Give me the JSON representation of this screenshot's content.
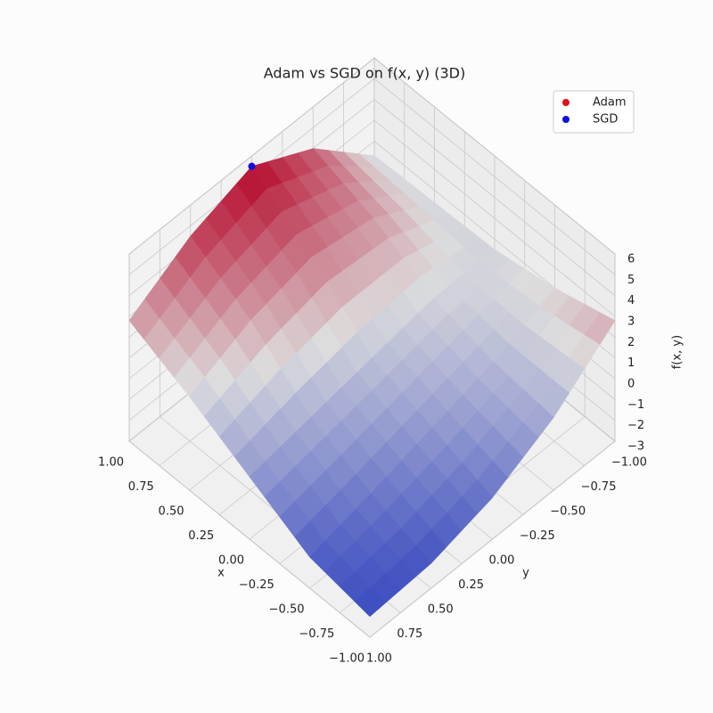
{
  "chart_data": {
    "type": "surface3d",
    "title": "Adam vs SGD on f(x, y) (3D)",
    "x_label": "x",
    "y_label": "y",
    "z_label": "f(x, y)",
    "xlim": [
      -1,
      1
    ],
    "ylim": [
      -1,
      1
    ],
    "zlim": [
      -3,
      6
    ],
    "xticks": [
      {
        "value": -1,
        "label": "−1.00"
      },
      {
        "value": -0.75,
        "label": "−0.75"
      },
      {
        "value": -0.5,
        "label": "−0.50"
      },
      {
        "value": -0.25,
        "label": "−0.25"
      },
      {
        "value": 0,
        "label": "0.00"
      },
      0.25,
      {
        "value": 0.5,
        "label": "0.50"
      },
      0.75,
      {
        "value": 1,
        "label": "1.00"
      }
    ],
    "yticks": [
      {
        "value": -1,
        "label": "−1.00"
      },
      {
        "value": -0.75,
        "label": "−0.75"
      },
      {
        "value": -0.5,
        "label": "−0.50"
      },
      {
        "value": -0.25,
        "label": "−0.25"
      },
      {
        "value": 0,
        "label": "0.00"
      },
      0.25,
      {
        "value": 0.5,
        "label": "0.50"
      },
      0.75,
      {
        "value": 1,
        "label": "1.00"
      }
    ],
    "zticks": [
      {
        "value": -3,
        "label": "−3"
      },
      {
        "value": -2,
        "label": "−2"
      },
      {
        "value": -1,
        "label": "−1"
      },
      0,
      1,
      2,
      3,
      4,
      5,
      6
    ],
    "grid": true,
    "legend_position": "upper-right",
    "surface": {
      "x": [
        -1,
        -0.5,
        0,
        0.5,
        1
      ],
      "y": [
        -1,
        -0.5,
        0,
        0.5,
        1
      ],
      "z": [
        [
          2.8,
          0.5,
          -1,
          -1.8,
          -2
        ],
        [
          2,
          0.8,
          0,
          -0.8,
          -1.5
        ],
        [
          1.5,
          1.5,
          1,
          0.5,
          0
        ],
        [
          1.4,
          3,
          3.5,
          2.8,
          1.5
        ],
        [
          1.3,
          4,
          5.5,
          4.5,
          2.8
        ]
      ]
    },
    "series": [
      {
        "name": "Adam",
        "color": "#e01010",
        "x": [
          1
        ],
        "y": [
          0
        ],
        "z": [
          5.5
        ]
      },
      {
        "name": "SGD",
        "color": "#1010e0",
        "x": [
          1
        ],
        "y": [
          0
        ],
        "z": [
          5.5
        ]
      }
    ]
  }
}
